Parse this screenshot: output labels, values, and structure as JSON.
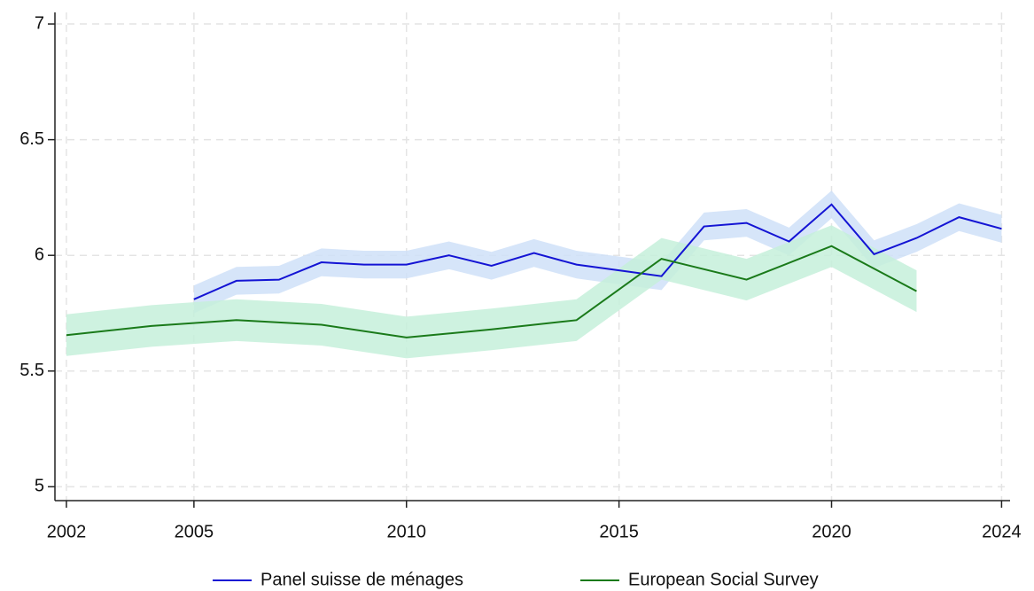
{
  "chart_data": {
    "type": "line",
    "xlim": [
      2001.73,
      2024.2
    ],
    "xticks": [
      2002,
      2005,
      2010,
      2015,
      2020,
      2024
    ],
    "ylim": [
      4.94,
      7.05
    ],
    "yticks": [
      5,
      5.5,
      6,
      6.5,
      7
    ],
    "grid": true,
    "legend": "bottom",
    "series": [
      {
        "name": "Panel suisse de ménages",
        "color": "#1414d4",
        "band_color": "#cfe0f8",
        "x": [
          2005,
          2006,
          2007,
          2008,
          2009,
          2010,
          2011,
          2012,
          2013,
          2014,
          2015,
          2016,
          2017,
          2018,
          2019,
          2020,
          2021,
          2022,
          2023,
          2024
        ],
        "values": [
          5.81,
          5.89,
          5.895,
          5.97,
          5.96,
          5.96,
          6.0,
          5.955,
          6.01,
          5.96,
          5.935,
          5.91,
          6.125,
          6.14,
          6.06,
          6.22,
          6.005,
          6.075,
          6.165,
          6.115
        ],
        "ci_upper": [
          5.87,
          5.95,
          5.955,
          6.03,
          6.02,
          6.02,
          6.06,
          6.015,
          6.07,
          6.02,
          5.995,
          5.97,
          6.185,
          6.2,
          6.12,
          6.28,
          6.065,
          6.135,
          6.225,
          6.175
        ],
        "ci_lower": [
          5.75,
          5.83,
          5.835,
          5.91,
          5.9,
          5.9,
          5.94,
          5.895,
          5.95,
          5.9,
          5.875,
          5.85,
          6.065,
          6.08,
          6.0,
          6.16,
          5.945,
          6.015,
          6.105,
          6.055
        ]
      },
      {
        "name": "European Social Survey",
        "color": "#1a7a1a",
        "band_color": "#c6f0da",
        "x": [
          2002,
          2004,
          2006,
          2008,
          2010,
          2012,
          2014,
          2016,
          2018,
          2020,
          2022
        ],
        "values": [
          5.655,
          5.695,
          5.72,
          5.7,
          5.645,
          5.68,
          5.72,
          5.985,
          5.895,
          6.04,
          5.845
        ],
        "ci_upper": [
          5.745,
          5.785,
          5.81,
          5.79,
          5.735,
          5.77,
          5.81,
          6.075,
          5.985,
          6.13,
          5.935
        ],
        "ci_lower": [
          5.565,
          5.605,
          5.63,
          5.61,
          5.555,
          5.59,
          5.63,
          5.895,
          5.805,
          5.95,
          5.755
        ]
      }
    ]
  }
}
